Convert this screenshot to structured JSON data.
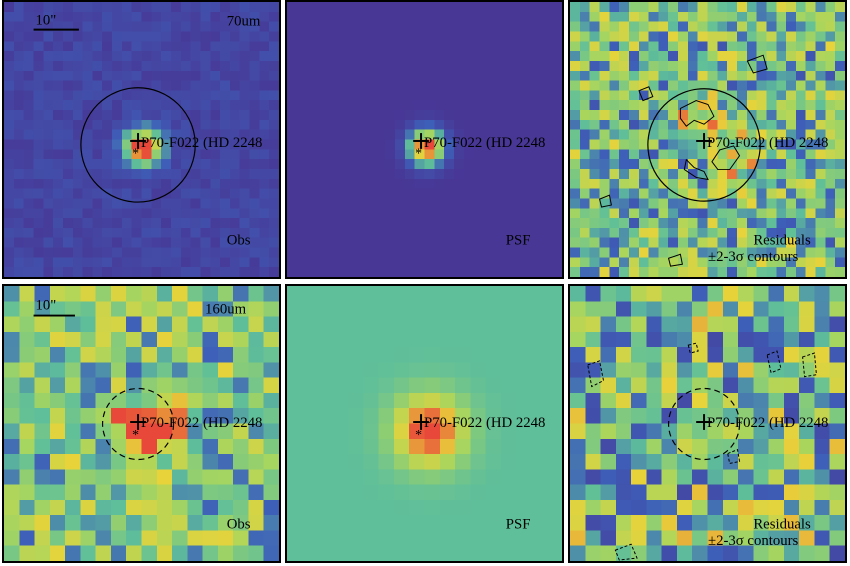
{
  "scale_bar_label": "10\"",
  "source_label": "P70-F022 (HD 2248",
  "rows": [
    {
      "band": "70um",
      "panels": [
        {
          "id": "obs",
          "label": "Obs"
        },
        {
          "id": "psf",
          "label": "PSF"
        },
        {
          "id": "resid",
          "label": "Residuals",
          "sublabel": "±2-3σ contours"
        }
      ]
    },
    {
      "band": "160um",
      "panels": [
        {
          "id": "obs",
          "label": "Obs"
        },
        {
          "id": "psf",
          "label": "PSF"
        },
        {
          "id": "resid",
          "label": "Residuals",
          "sublabel": "±2-3σ contours"
        }
      ]
    }
  ],
  "colors": {
    "map_low": "#3b2d8f",
    "map_mid": "#5fbf9a",
    "map_high": "#e8d33a",
    "peak": "#e8483a",
    "frame": "#000000"
  }
}
